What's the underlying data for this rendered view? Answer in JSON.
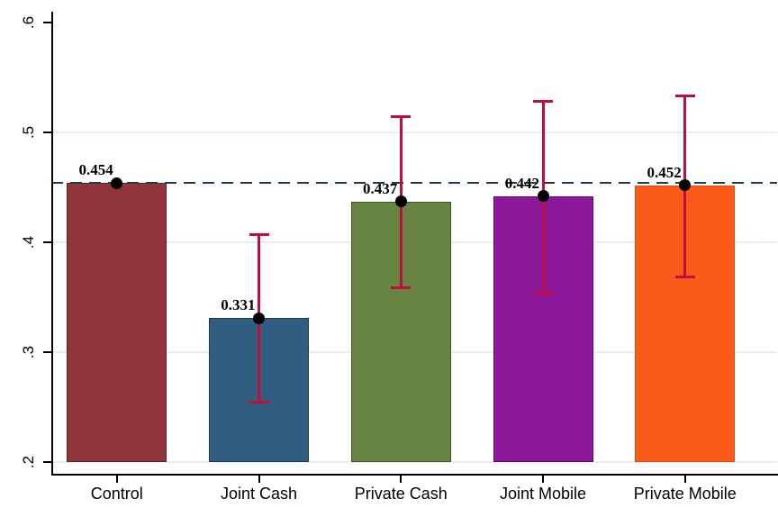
{
  "chart_data": {
    "type": "bar",
    "title": "",
    "xlabel": "",
    "ylabel": "",
    "categories": [
      "Control",
      "Joint Cash",
      "Private Cash",
      "Joint Mobile",
      "Private Mobile"
    ],
    "values": [
      0.454,
      0.331,
      0.437,
      0.442,
      0.452
    ],
    "value_labels": [
      "0.454",
      "0.331",
      "0.437",
      "0.442",
      "0.452"
    ],
    "conf_intervals": [
      [
        null,
        null
      ],
      [
        0.254,
        0.407
      ],
      [
        0.358,
        0.515
      ],
      [
        0.353,
        0.529
      ],
      [
        0.368,
        0.534
      ]
    ],
    "reference_line": {
      "value": 0.454,
      "style": "dashed",
      "color": "#1E3D5C"
    },
    "ylim": [
      0.2,
      0.6
    ],
    "yticks": [
      0.2,
      0.3,
      0.4,
      0.5,
      0.6
    ],
    "ytick_labels": [
      ".2",
      ".3",
      ".4",
      ".5",
      ".6"
    ],
    "gridline_values": [
      0.2,
      0.3,
      0.4,
      0.5
    ],
    "grid": true,
    "legend": "none",
    "bar_colors": [
      "#90353B",
      "#305D80",
      "#678442",
      "#8E189B",
      "#FC5A19"
    ],
    "bar_border_colors": [
      "#632127",
      "#1A3A57",
      "#3F5822",
      "#5C0C68",
      "#E04B0A"
    ],
    "error_bar_color": "#C10E3C",
    "marker_color": "#000000",
    "grid_color": "#E7EDF3",
    "axis_color": "#000000",
    "background_color": "#FFFFFF"
  }
}
